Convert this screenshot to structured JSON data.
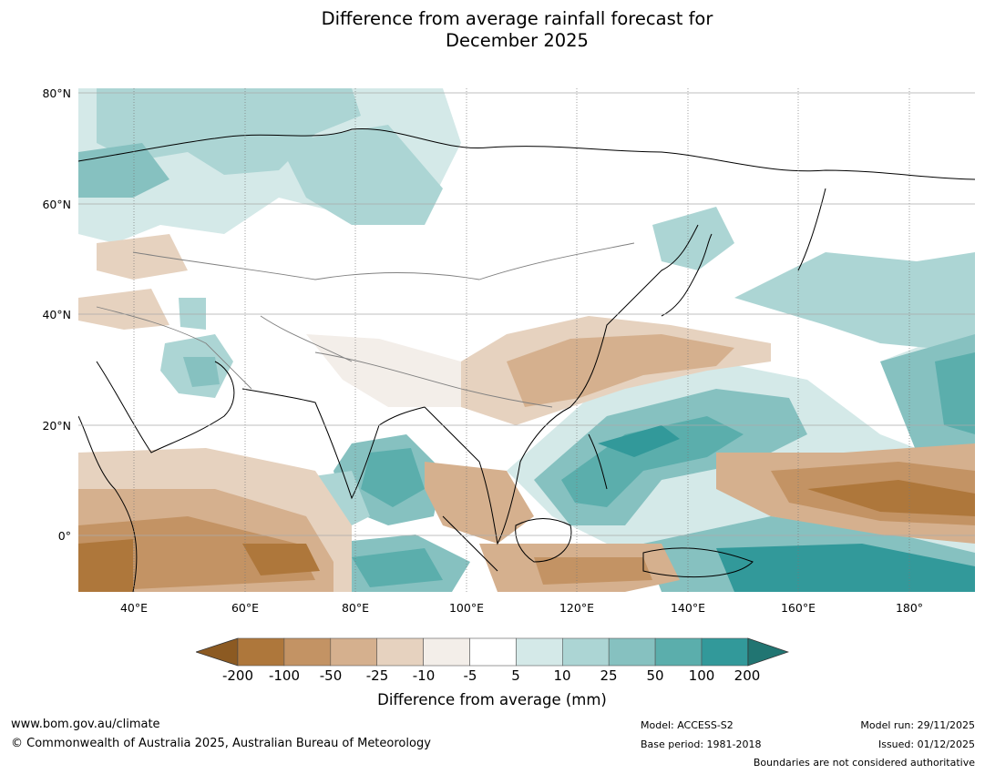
{
  "title": {
    "line1": "Difference from average rainfall forecast for",
    "line2": "December 2025"
  },
  "map": {
    "region": "Asia and Western Pacific",
    "lat_labels": [
      "80°N",
      "60°N",
      "40°N",
      "20°N",
      "0°"
    ],
    "lon_labels": [
      "40°E",
      "60°E",
      "80°E",
      "100°E",
      "120°E",
      "140°E",
      "160°E",
      "180°"
    ]
  },
  "legend": {
    "title": "Difference from average (mm)",
    "ticks": [
      "-200",
      "-100",
      "-50",
      "-25",
      "-10",
      "-5",
      "5",
      "10",
      "25",
      "50",
      "100",
      "200"
    ],
    "colors": {
      "below_200": "#8c5a22",
      "m200_m100": "#ae773b",
      "m100_m50": "#c39364",
      "m50_m25": "#d5b08e",
      "m25_m10": "#e6d2bf",
      "m10_m5": "#f3eee9",
      "m5_5": "#ffffff",
      "5_10": "#d4e9e8",
      "10_25": "#acd5d4",
      "25_50": "#86c1c0",
      "50_100": "#5baeac",
      "100_200": "#32999a",
      "above_200": "#217572"
    }
  },
  "footer": {
    "website": "www.bom.gov.au/climate",
    "copyright": "© Commonwealth of Australia 2025, Australian Bureau of Meteorology",
    "model": "Model: ACCESS-S2",
    "base_period": "Base period: 1981-2018",
    "model_run": "Model run: 29/11/2025",
    "issued": "Issued: 01/12/2025",
    "disclaimer": "Boundaries are not considered authoritative"
  }
}
